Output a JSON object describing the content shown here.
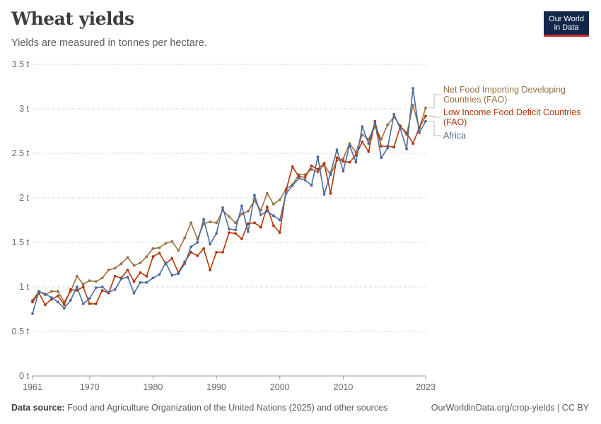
{
  "header": {
    "title": "Wheat yields",
    "subtitle": "Yields are measured in tonnes per hectare.",
    "logo_line1": "Our World",
    "logo_line2": "in Data"
  },
  "footer": {
    "source_label": "Data source:",
    "source_text": "Food and Agriculture Organization of the United Nations (2025) and other sources",
    "url": "OurWorldinData.org/crop-yields | CC BY"
  },
  "colors": {
    "nfidc": "#9a7042",
    "lifdc": "#b13507",
    "africa": "#4c6a9c",
    "grid": "#d9d9d9",
    "axis": "#666666"
  },
  "chart_data": {
    "type": "line",
    "title": "Wheat yields",
    "subtitle": "Yields are measured in tonnes per hectare.",
    "xlabel": "",
    "ylabel": "",
    "xlim": [
      1961,
      2023
    ],
    "ylim": [
      0,
      3.5
    ],
    "grid": true,
    "legend": "right",
    "x_ticks": [
      1961,
      1970,
      1980,
      1990,
      2000,
      2010,
      2023
    ],
    "y_ticks": [
      {
        "value": 0,
        "label": "0 t"
      },
      {
        "value": 0.5,
        "label": "0.5 t"
      },
      {
        "value": 1,
        "label": "1 t"
      },
      {
        "value": 1.5,
        "label": "1.5 t"
      },
      {
        "value": 2,
        "label": "2 t"
      },
      {
        "value": 2.5,
        "label": "2.5 t"
      },
      {
        "value": 3,
        "label": "3 t"
      },
      {
        "value": 3.5,
        "label": "3.5 t"
      }
    ],
    "x": [
      1961,
      1962,
      1963,
      1964,
      1965,
      1966,
      1967,
      1968,
      1969,
      1970,
      1971,
      1972,
      1973,
      1974,
      1975,
      1976,
      1977,
      1978,
      1979,
      1980,
      1981,
      1982,
      1983,
      1984,
      1985,
      1986,
      1987,
      1988,
      1989,
      1990,
      1991,
      1992,
      1993,
      1994,
      1995,
      1996,
      1997,
      1998,
      1999,
      2000,
      2001,
      2002,
      2003,
      2004,
      2005,
      2006,
      2007,
      2008,
      2009,
      2010,
      2011,
      2012,
      2013,
      2014,
      2015,
      2016,
      2017,
      2018,
      2019,
      2020,
      2021,
      2022,
      2023
    ],
    "series": [
      {
        "name": "Net Food Importing Developing Countries (FAO)",
        "color_key": "nfidc",
        "values": [
          0.85,
          0.95,
          0.91,
          0.95,
          0.95,
          0.83,
          0.95,
          1.12,
          1.03,
          1.07,
          1.06,
          1.1,
          1.19,
          1.21,
          1.26,
          1.33,
          1.24,
          1.27,
          1.34,
          1.43,
          1.44,
          1.49,
          1.51,
          1.41,
          1.55,
          1.72,
          1.54,
          1.71,
          1.73,
          1.72,
          1.86,
          1.79,
          1.72,
          1.82,
          1.85,
          1.97,
          1.86,
          2.05,
          1.93,
          1.98,
          2.1,
          2.15,
          2.26,
          2.26,
          2.32,
          2.29,
          2.37,
          2.26,
          2.42,
          2.44,
          2.61,
          2.51,
          2.71,
          2.66,
          2.8,
          2.66,
          2.82,
          2.91,
          2.81,
          2.71,
          3.04,
          2.78,
          3.01
        ]
      },
      {
        "name": "Low Income Food Deficit Countries (FAO)",
        "color_key": "lifdc",
        "values": [
          0.83,
          0.93,
          0.8,
          0.86,
          0.9,
          0.8,
          0.97,
          0.96,
          1.0,
          0.81,
          0.81,
          0.96,
          0.93,
          1.12,
          1.1,
          1.19,
          1.06,
          1.16,
          1.12,
          1.34,
          1.38,
          1.26,
          1.32,
          1.16,
          1.28,
          1.39,
          1.35,
          1.43,
          1.19,
          1.39,
          1.39,
          1.61,
          1.6,
          1.54,
          1.71,
          1.72,
          1.67,
          1.9,
          1.69,
          1.61,
          2.09,
          2.35,
          2.24,
          2.23,
          2.36,
          2.32,
          2.39,
          2.05,
          2.45,
          2.41,
          2.4,
          2.48,
          2.63,
          2.52,
          2.86,
          2.58,
          2.58,
          2.57,
          2.8,
          2.73,
          2.61,
          2.79,
          2.92
        ]
      },
      {
        "name": "Africa",
        "color_key": "africa",
        "values": [
          0.7,
          0.95,
          0.92,
          0.88,
          0.83,
          0.76,
          0.85,
          1.0,
          0.81,
          0.87,
          0.99,
          1.0,
          0.94,
          0.97,
          1.09,
          1.11,
          0.93,
          1.05,
          1.05,
          1.1,
          1.14,
          1.27,
          1.13,
          1.15,
          1.26,
          1.45,
          1.5,
          1.76,
          1.48,
          1.6,
          1.89,
          1.65,
          1.64,
          1.91,
          1.62,
          2.03,
          1.81,
          1.85,
          1.8,
          1.75,
          2.05,
          2.14,
          2.22,
          2.2,
          2.14,
          2.46,
          2.04,
          2.28,
          2.54,
          2.3,
          2.59,
          2.4,
          2.8,
          2.61,
          2.85,
          2.45,
          2.56,
          2.94,
          2.78,
          2.55,
          3.23,
          2.73,
          2.86
        ]
      }
    ],
    "labels": [
      {
        "series": 0,
        "lines": [
          "Net Food Importing Developing",
          "Countries (FAO)"
        ]
      },
      {
        "series": 1,
        "lines": [
          "Low Income Food Deficit Countries",
          "(FAO)"
        ]
      },
      {
        "series": 2,
        "lines": [
          "Africa"
        ]
      }
    ]
  }
}
